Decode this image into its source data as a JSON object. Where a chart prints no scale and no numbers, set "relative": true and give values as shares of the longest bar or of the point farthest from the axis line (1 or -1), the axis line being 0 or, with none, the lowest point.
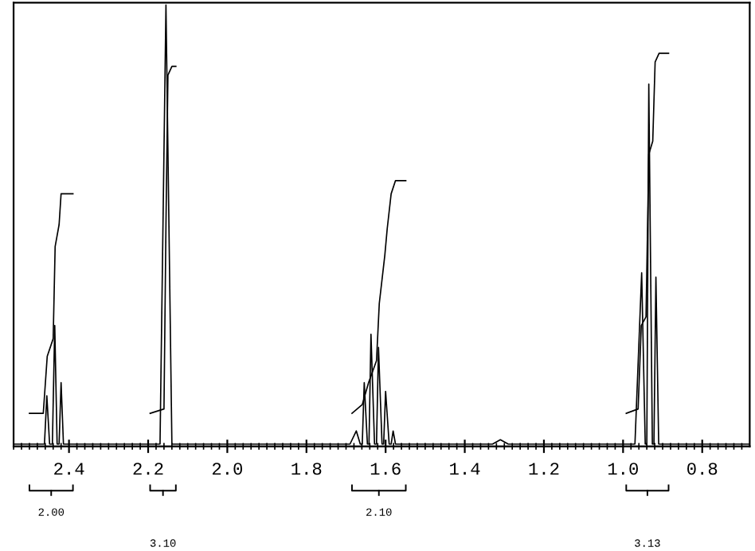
{
  "chart_data": {
    "type": "line",
    "relative": true,
    "xlim": [
      2.54,
      0.68
    ],
    "xticks": [
      2.4,
      2.2,
      {
        "value": 2.0,
        "label": "2.0"
      },
      1.8,
      1.6,
      1.4,
      1.2,
      {
        "value": 1.0,
        "label": "1.0"
      },
      0.8
    ],
    "tick_labels": "x",
    "grid": false,
    "legend": false,
    "marker": "none",
    "line_style": "solid",
    "series": [
      {
        "color": "#000000",
        "x": [
          2.54,
          2.47,
          2.462,
          2.456,
          2.449,
          2.442,
          2.436,
          2.43,
          2.425,
          2.42,
          2.414,
          2.3,
          2.17,
          2.155,
          2.14,
          1.9,
          1.69,
          1.674,
          1.664,
          1.659,
          1.654,
          1.646,
          1.642,
          1.637,
          1.628,
          1.623,
          1.618,
          1.609,
          1.605,
          1.6,
          1.591,
          1.586,
          1.581,
          1.575,
          1.4,
          1.33,
          1.31,
          1.29,
          1.1,
          0.97,
          0.953,
          0.944,
          0.94,
          0.935,
          0.926,
          0.922,
          0.917,
          0.91,
          0.68
        ],
        "values": [
          0,
          0,
          0,
          0.11,
          0,
          0,
          0.27,
          0,
          0,
          0.14,
          0,
          0,
          0,
          1.0,
          0,
          0,
          0,
          0.03,
          0,
          0,
          0.14,
          0,
          0,
          0.25,
          0,
          0,
          0.22,
          0,
          0,
          0.12,
          0,
          0,
          0.03,
          0,
          0,
          0,
          0.01,
          0,
          0,
          0,
          0.39,
          0,
          0,
          0.82,
          0,
          0,
          0.38,
          0,
          0
        ]
      },
      {
        "color": "#000000",
        "x": [
          2.5,
          2.465,
          2.455,
          2.44,
          2.435,
          2.425,
          2.42,
          2.39
        ],
        "values": [
          0.07,
          0.07,
          0.2,
          0.24,
          0.45,
          0.5,
          0.57,
          0.57
        ]
      },
      {
        "color": "#000000",
        "x": [
          2.195,
          2.16,
          2.155,
          2.15,
          2.14,
          2.13
        ],
        "values": [
          0.07,
          0.08,
          0.5,
          0.84,
          0.86,
          0.86
        ]
      },
      {
        "color": "#000000",
        "x": [
          1.685,
          1.659,
          1.643,
          1.623,
          1.616,
          1.602,
          1.596,
          1.586,
          1.575,
          1.565,
          1.549
        ],
        "values": [
          0.07,
          0.09,
          0.14,
          0.19,
          0.32,
          0.43,
          0.49,
          0.57,
          0.6,
          0.6,
          0.6
        ]
      },
      {
        "color": "#000000",
        "x": [
          0.992,
          0.962,
          0.954,
          0.942,
          0.935,
          0.925,
          0.919,
          0.909,
          0.885
        ],
        "values": [
          0.07,
          0.08,
          0.27,
          0.29,
          0.66,
          0.69,
          0.87,
          0.89,
          0.89
        ]
      }
    ],
    "annotations": [
      "2.00",
      "3.10",
      "2.10",
      "3.13"
    ]
  }
}
